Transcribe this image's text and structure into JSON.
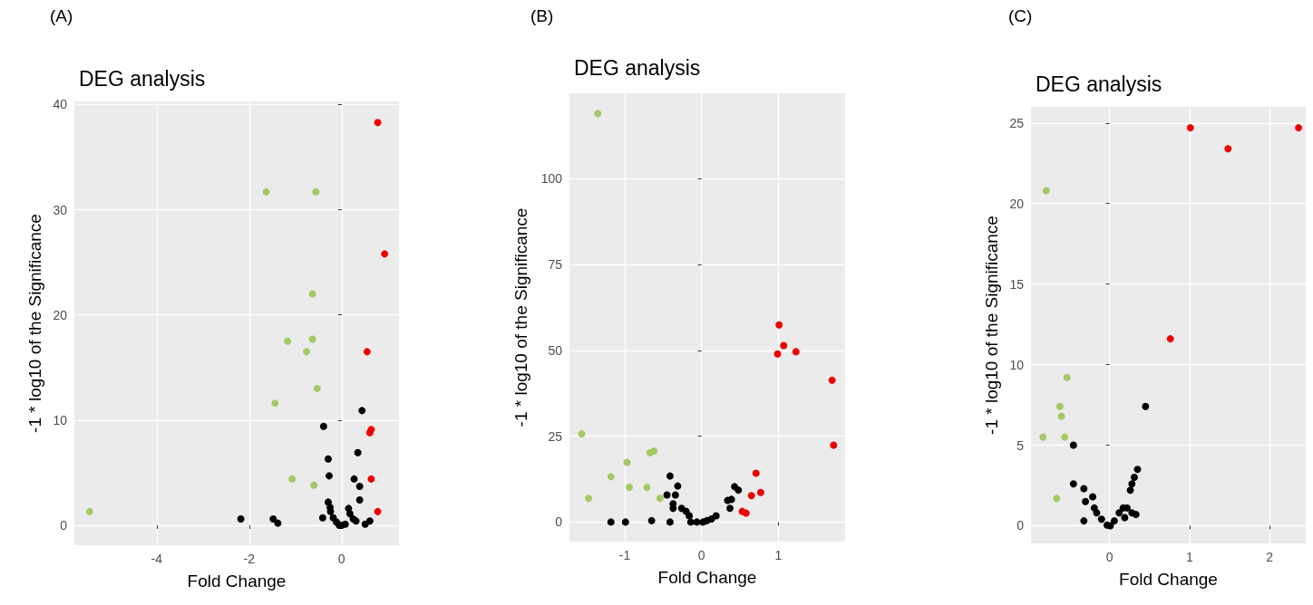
{
  "chart_data": [
    {
      "type": "scatter",
      "title": "DEG analysis",
      "xlabel": "Fold Change",
      "ylabel": "-1 * log10 of the Significance",
      "annotations": [
        "(A)"
      ],
      "marker": "circle",
      "grid": true,
      "xlim": [
        -5.78,
        1.24
      ],
      "ylim": [
        -1.9,
        40.3
      ],
      "xticks": [
        -4,
        -2,
        0
      ],
      "yticks": [
        0,
        10,
        20,
        30,
        40
      ],
      "series": [
        {
          "color": "#000000",
          "x": [
            0.44,
            -0.39,
            0.35,
            -0.29,
            -0.27,
            0.27,
            0.39,
            0.39,
            -2.18,
            -1.48,
            -1.38,
            -0.29,
            -0.25,
            -0.24,
            -0.41,
            -0.18,
            -0.11,
            0,
            0.08,
            0.15,
            0.18,
            0.25,
            0.31,
            0.51,
            0.61,
            -0.05
          ],
          "values": [
            10.9,
            9.4,
            6.9,
            6.3,
            4.7,
            4.4,
            3.7,
            2.4,
            0.6,
            0.6,
            0.2,
            2.2,
            1.7,
            1.3,
            0.7,
            0.7,
            0.3,
            0,
            0.1,
            1.6,
            1.1,
            0.6,
            0.4,
            0.1,
            0.4,
            0
          ]
        },
        {
          "color": "#a1c964",
          "x": [
            -5.45,
            -1.63,
            -0.56,
            -0.63,
            -1.17,
            -0.63,
            -0.76,
            -0.53,
            -1.44,
            -1.07,
            -0.6
          ],
          "values": [
            1.3,
            31.7,
            31.7,
            22.0,
            17.5,
            17.7,
            16.5,
            13.0,
            11.6,
            4.4,
            3.8
          ]
        },
        {
          "color": "#ee0000",
          "x": [
            0.78,
            0.93,
            0.55,
            0.64,
            0.61,
            0.64,
            0.78
          ],
          "values": [
            38.3,
            25.8,
            16.5,
            9.1,
            8.8,
            4.4,
            1.3
          ]
        }
      ]
    },
    {
      "type": "scatter",
      "title": "DEG analysis",
      "xlabel": "Fold Change",
      "ylabel": "-1 * log10 of the Significance",
      "annotations": [
        "(B)"
      ],
      "marker": "circle",
      "grid": true,
      "xlim": [
        -1.72,
        1.87
      ],
      "ylim": [
        -5.7,
        124.9
      ],
      "xticks": [
        -1,
        0,
        1
      ],
      "yticks": [
        0,
        25,
        50,
        75,
        100
      ],
      "series": [
        {
          "color": "#000000",
          "x": [
            -1.18,
            -0.99,
            -0.65,
            -0.41,
            -0.41,
            -0.31,
            -0.45,
            -0.34,
            -0.37,
            -0.37,
            -0.26,
            -0.2,
            -0.16,
            -0.14,
            -0.06,
            0.02,
            0.07,
            0.13,
            0.19,
            0.34,
            0.39,
            0.37,
            0.43,
            0.48
          ],
          "values": [
            0,
            0,
            0.4,
            0,
            13.4,
            10.5,
            7.9,
            7.9,
            5.3,
            4.0,
            4.0,
            3.1,
            1.8,
            0,
            0,
            0,
            0.4,
            0.9,
            1.8,
            6.3,
            6.6,
            4.0,
            10.3,
            9.3
          ]
        },
        {
          "color": "#a1c964",
          "x": [
            -1.35,
            -1.56,
            -1.47,
            -1.18,
            -0.97,
            -0.94,
            -0.71,
            -0.67,
            -0.62,
            -0.54
          ],
          "values": [
            119,
            25.7,
            6.9,
            13.2,
            17.4,
            10.1,
            10.1,
            20.2,
            20.7,
            6.9
          ]
        },
        {
          "color": "#ee0000",
          "x": [
            1.01,
            1.07,
            1.23,
            0.99,
            1.7,
            1.72,
            0.71,
            0.77,
            0.65,
            0.53,
            0.58
          ],
          "values": [
            57.4,
            51.4,
            49.6,
            49.0,
            41.3,
            22.4,
            14.2,
            8.6,
            7.7,
            3.1,
            2.6
          ]
        }
      ]
    },
    {
      "type": "scatter",
      "title": "DEG analysis",
      "xlabel": "Fold Change",
      "ylabel": "-1 * log10 of the Significance",
      "annotations": [
        "(C)"
      ],
      "marker": "circle",
      "grid": true,
      "xlim": [
        -0.98,
        2.45
      ],
      "ylim": [
        -1.1,
        26.0
      ],
      "xticks": [
        0,
        1,
        2
      ],
      "yticks": [
        0,
        5,
        10,
        15,
        20,
        25
      ],
      "series": [
        {
          "color": "#000000",
          "x": [
            0.45,
            -0.45,
            -0.45,
            -0.32,
            -0.3,
            -0.21,
            -0.19,
            -0.32,
            -0.16,
            -0.1,
            -0.03,
            0.01,
            0.06,
            0.12,
            0.17,
            0.22,
            0.28,
            0.33,
            0.26,
            0.28,
            0.31,
            0.35,
            0.19
          ],
          "values": [
            7.4,
            5.0,
            2.6,
            2.3,
            1.5,
            1.8,
            1.1,
            0.3,
            0.8,
            0.4,
            0.04,
            0,
            0.3,
            0.8,
            1.1,
            1.1,
            0.8,
            0.7,
            2.2,
            2.6,
            3.0,
            3.5,
            0.5
          ]
        },
        {
          "color": "#a1c964",
          "x": [
            -0.79,
            -0.53,
            -0.62,
            -0.6,
            -0.83,
            -0.56,
            -0.66
          ],
          "values": [
            20.8,
            9.2,
            7.4,
            6.8,
            5.5,
            5.5,
            1.7
          ]
        },
        {
          "color": "#ee0000",
          "x": [
            1.01,
            1.48,
            2.36,
            0.76
          ],
          "values": [
            24.7,
            23.4,
            24.7,
            11.6
          ]
        }
      ]
    }
  ]
}
